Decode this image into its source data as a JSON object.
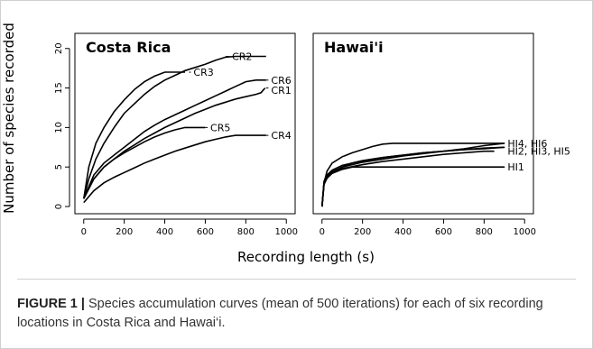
{
  "chart_data": [
    {
      "type": "line",
      "title": "Costa Rica",
      "xlabel": "Recording length (s)",
      "ylabel": "Number of species recorded",
      "xlim": [
        0,
        1000
      ],
      "ylim": [
        0,
        21
      ],
      "xticks": [
        0,
        200,
        400,
        600,
        800,
        1000
      ],
      "yticks": [
        0,
        5,
        10,
        15,
        20
      ],
      "grid": false,
      "series": [
        {
          "name": "CR2",
          "x": [
            0,
            25,
            60,
            100,
            150,
            200,
            250,
            300,
            350,
            400,
            450,
            500,
            550,
            600,
            650,
            700,
            750,
            800,
            850,
            900
          ],
          "y": [
            1,
            3.5,
            6,
            8,
            10,
            11.8,
            13,
            14.2,
            15.2,
            16,
            16.6,
            17.2,
            17.6,
            18,
            18.5,
            18.9,
            19,
            19,
            19,
            19
          ]
        },
        {
          "name": "CR3",
          "x": [
            0,
            25,
            60,
            100,
            150,
            200,
            250,
            300,
            350,
            400,
            450,
            500
          ],
          "y": [
            1,
            5,
            8,
            10,
            12,
            13.5,
            14.8,
            15.8,
            16.5,
            17,
            17,
            17
          ]
        },
        {
          "name": "CR6",
          "x": [
            0,
            50,
            100,
            150,
            200,
            250,
            300,
            350,
            400,
            450,
            500,
            550,
            600,
            650,
            700,
            750,
            800,
            850,
            900
          ],
          "y": [
            1,
            4,
            5.5,
            6.5,
            7.5,
            8.5,
            9.5,
            10.3,
            11,
            11.6,
            12.2,
            12.8,
            13.4,
            14,
            14.6,
            15.2,
            15.8,
            16,
            16
          ]
        },
        {
          "name": "CR1",
          "x": [
            0,
            50,
            100,
            150,
            200,
            250,
            300,
            350,
            400,
            450,
            500,
            550,
            600,
            650,
            700,
            750,
            800,
            850,
            875,
            885,
            895
          ],
          "y": [
            1,
            3.5,
            5,
            6,
            7,
            7.8,
            8.6,
            9.3,
            10,
            10.6,
            11.2,
            11.8,
            12.3,
            12.8,
            13.2,
            13.6,
            13.9,
            14.2,
            14.4,
            14.7,
            15
          ]
        },
        {
          "name": "CR5",
          "x": [
            0,
            50,
            100,
            150,
            200,
            250,
            300,
            350,
            400,
            450,
            500,
            550,
            600
          ],
          "y": [
            1,
            3.5,
            5,
            6,
            6.8,
            7.5,
            8.2,
            8.8,
            9.3,
            9.7,
            10,
            10,
            10
          ]
        },
        {
          "name": "CR4",
          "x": [
            0,
            50,
            100,
            150,
            200,
            250,
            300,
            350,
            400,
            450,
            500,
            550,
            600,
            650,
            700,
            750,
            800,
            850,
            900
          ],
          "y": [
            0.5,
            2,
            3,
            3.7,
            4.3,
            4.9,
            5.5,
            6,
            6.5,
            7,
            7.4,
            7.8,
            8.2,
            8.5,
            8.8,
            9,
            9,
            9,
            9
          ]
        }
      ]
    },
    {
      "type": "line",
      "title": "Hawai'i",
      "xlim": [
        0,
        1000
      ],
      "ylim": [
        0,
        21
      ],
      "xticks": [
        0,
        200,
        400,
        600,
        800,
        1000
      ],
      "grid": false,
      "series": [
        {
          "name": "HI4, HI6",
          "x": [
            0,
            10,
            25,
            50,
            100,
            150,
            200,
            250,
            300,
            350,
            400,
            500,
            600,
            700,
            800,
            900
          ],
          "y": [
            0,
            3,
            4.5,
            5.5,
            6.3,
            6.8,
            7.2,
            7.6,
            7.9,
            8,
            8,
            8,
            8,
            8,
            8,
            8
          ]
        },
        {
          "name": "HI2, HI3, HI5",
          "x": [
            0,
            10,
            25,
            50,
            100,
            150,
            200,
            300,
            400,
            500,
            600,
            700,
            800,
            900
          ],
          "y": [
            0,
            3,
            3.8,
            4.3,
            5,
            5.5,
            5.8,
            6.2,
            6.5,
            6.8,
            7,
            7.2,
            7.4,
            7.5
          ]
        },
        {
          "name": "HI1",
          "x": [
            0,
            10,
            25,
            50,
            100,
            150,
            200,
            300,
            400,
            600,
            900
          ],
          "y": [
            0,
            2.8,
            3.6,
            4.2,
            4.7,
            5,
            5,
            5,
            5,
            5,
            5
          ]
        }
      ],
      "extra_lines": [
        {
          "x": [
            0,
            10,
            25,
            50,
            100,
            200,
            300,
            400,
            500,
            600,
            700,
            800,
            900
          ],
          "y": [
            0,
            3.2,
            4,
            4.6,
            5.2,
            5.8,
            6.2,
            6.5,
            6.8,
            7,
            7.3,
            7.7,
            8
          ]
        },
        {
          "x": [
            0,
            10,
            25,
            50,
            100,
            200,
            300,
            400,
            500,
            600,
            700,
            800,
            900
          ],
          "y": [
            0,
            3,
            3.8,
            4.4,
            5,
            5.6,
            6,
            6.4,
            6.7,
            7,
            7.2,
            7.3,
            7.5
          ]
        },
        {
          "x": [
            0,
            10,
            25,
            50,
            100,
            200,
            300,
            400,
            500,
            600,
            700,
            800,
            850
          ],
          "y": [
            0,
            2.9,
            3.7,
            4.3,
            4.8,
            5.3,
            5.7,
            6,
            6.3,
            6.6,
            6.8,
            7,
            7
          ]
        }
      ]
    }
  ],
  "caption": {
    "label": "FIGURE 1 |",
    "text": " Species accumulation curves (mean of 500 iterations) for each of six recording locations in Costa Rica and Hawai‘i."
  }
}
